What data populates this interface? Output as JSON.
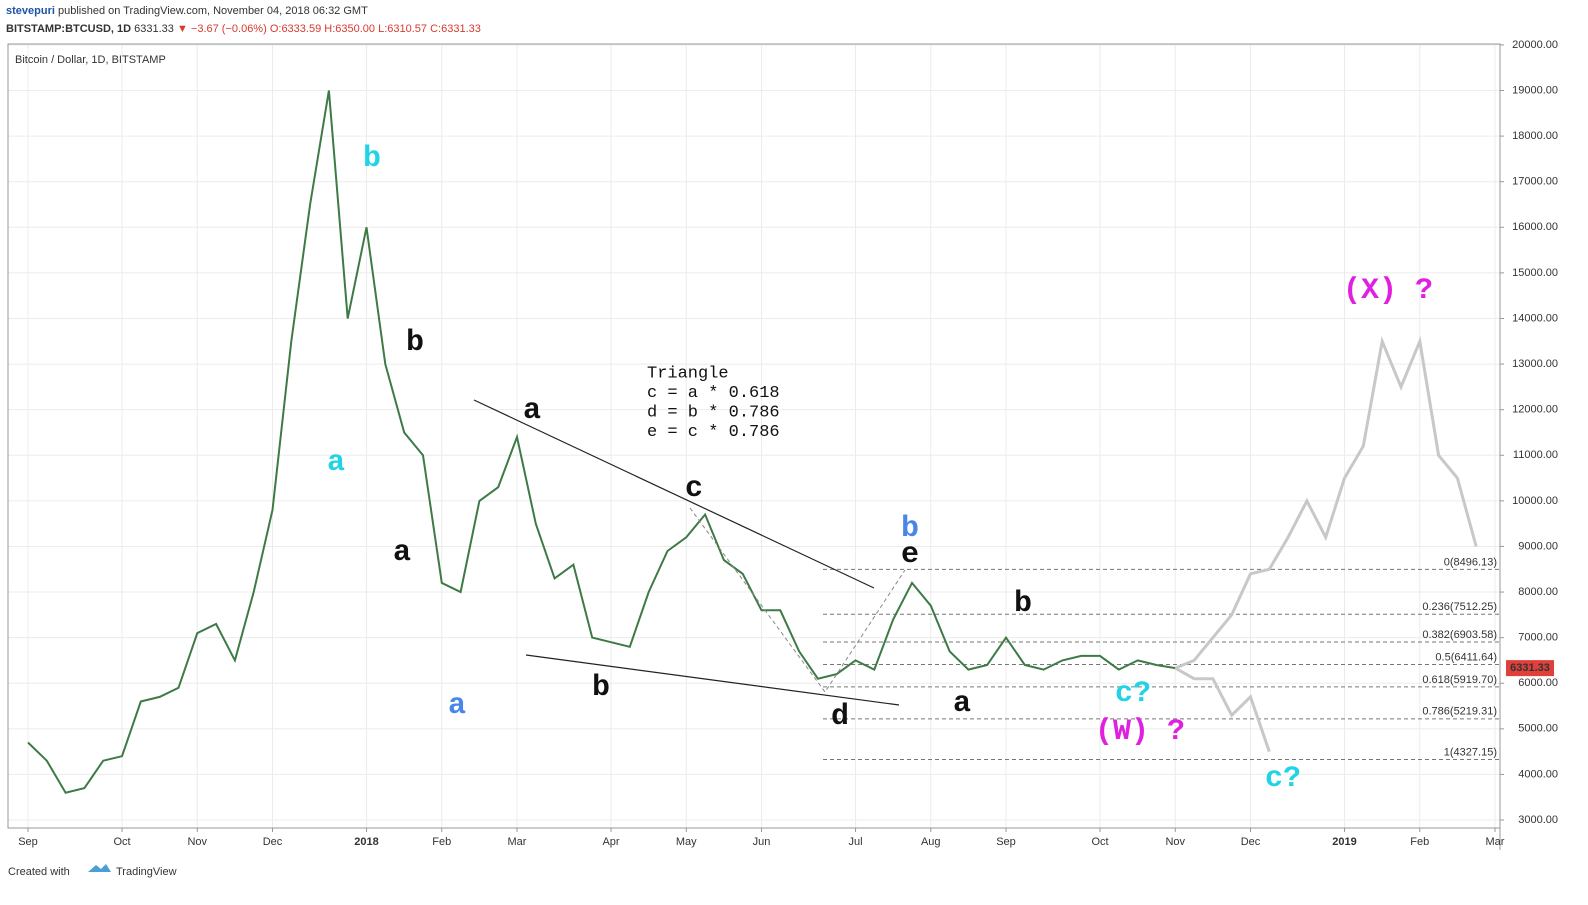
{
  "header": {
    "author": "stevepuri",
    "published": "published on TradingView.com, November 04, 2018 06:32 GMT",
    "symbol": "BITSTAMP:BTCUSD, 1D",
    "price": "6331.33",
    "arrow": "▼",
    "change": "−3.67 (−0.06%)",
    "ohlc": [
      "O:6333.59",
      "H:6350.00",
      "L:6310.57",
      "C:6331.33"
    ]
  },
  "footer": {
    "created": "Created with",
    "brand": "TradingView"
  },
  "chart_data": {
    "type": "line",
    "title": "Bitcoin / Dollar, 1D, BITSTAMP",
    "categories": [
      "Sep",
      null,
      null,
      null,
      null,
      "Oct",
      null,
      null,
      null,
      "Nov",
      null,
      null,
      null,
      "Dec",
      null,
      null,
      null,
      null,
      "2018",
      null,
      null,
      null,
      "Feb",
      null,
      null,
      null,
      "Mar",
      null,
      null,
      null,
      null,
      "Apr",
      null,
      null,
      null,
      "May",
      null,
      null,
      null,
      "Jun",
      null,
      null,
      null,
      null,
      "Jul",
      null,
      null,
      null,
      "Aug",
      null,
      null,
      null,
      "Sep",
      null,
      null,
      null,
      null,
      "Oct",
      null,
      null,
      null,
      "Nov",
      null,
      null,
      null,
      "Dec",
      null,
      null,
      null,
      null,
      "2019",
      null,
      null,
      null,
      "Feb",
      null,
      null,
      null,
      "Mar"
    ],
    "series": [
      {
        "name": "BTCUSD",
        "color": "#3d7a45",
        "values": [
          4700,
          4300,
          3600,
          3700,
          4300,
          4400,
          5600,
          5700,
          5900,
          7100,
          7300,
          6500,
          8000,
          9800,
          13500,
          16500,
          19000,
          14000,
          16000,
          13000,
          11500,
          11000,
          8200,
          8000,
          10000,
          10300,
          11400,
          9500,
          8300,
          8600,
          7000,
          6900,
          6800,
          8000,
          8900,
          9200,
          9700,
          8700,
          8400,
          7600,
          7600,
          6700,
          6100,
          6200,
          6500,
          6300,
          7400,
          8200,
          7700,
          6700,
          6300,
          6400,
          7000,
          6400,
          6300,
          6500,
          6600,
          6600,
          6300,
          6500,
          6400,
          6331.33,
          null,
          null,
          null,
          null,
          null,
          null,
          null,
          null,
          null,
          null,
          null,
          null,
          null,
          null,
          null,
          null,
          null
        ]
      },
      {
        "name": "Projection up",
        "color": "#c8c8c8",
        "values": [
          null,
          null,
          null,
          null,
          null,
          null,
          null,
          null,
          null,
          null,
          null,
          null,
          null,
          null,
          null,
          null,
          null,
          null,
          null,
          null,
          null,
          null,
          null,
          null,
          null,
          null,
          null,
          null,
          null,
          null,
          null,
          null,
          null,
          null,
          null,
          null,
          null,
          null,
          null,
          null,
          null,
          null,
          null,
          null,
          null,
          null,
          null,
          null,
          null,
          null,
          null,
          null,
          null,
          null,
          null,
          null,
          null,
          null,
          null,
          null,
          null,
          6331.33,
          6500,
          7000,
          7500,
          8400,
          8500,
          9200,
          10000,
          9200,
          10500,
          11200,
          13500,
          12500,
          13500,
          11000,
          10500,
          9000,
          null
        ]
      },
      {
        "name": "Projection down",
        "color": "#c8c8c8",
        "values": [
          null,
          null,
          null,
          null,
          null,
          null,
          null,
          null,
          null,
          null,
          null,
          null,
          null,
          null,
          null,
          null,
          null,
          null,
          null,
          null,
          null,
          null,
          null,
          null,
          null,
          null,
          null,
          null,
          null,
          null,
          null,
          null,
          null,
          null,
          null,
          null,
          null,
          null,
          null,
          null,
          null,
          null,
          null,
          null,
          null,
          null,
          null,
          null,
          null,
          null,
          null,
          null,
          null,
          null,
          null,
          null,
          null,
          null,
          null,
          null,
          null,
          6331.33,
          6100,
          6100,
          5300,
          5700,
          4500,
          null,
          null,
          null,
          null,
          null,
          null,
          null,
          null,
          null,
          null,
          null,
          null
        ]
      }
    ],
    "ylim": [
      2825,
      20020
    ],
    "yticks": [
      {
        "value": 3000,
        "label": "3000.00"
      },
      {
        "value": 4000,
        "label": "4000.00"
      },
      {
        "value": 5000,
        "label": "5000.00"
      },
      {
        "value": 6000,
        "label": "6000.00"
      },
      {
        "value": 7000,
        "label": "7000.00"
      },
      {
        "value": 8000,
        "label": "8000.00"
      },
      {
        "value": 9000,
        "label": "9000.00"
      },
      {
        "value": 10000,
        "label": "10000.00"
      },
      {
        "value": 11000,
        "label": "11000.00"
      },
      {
        "value": 12000,
        "label": "12000.00"
      },
      {
        "value": 13000,
        "label": "13000.00"
      },
      {
        "value": 14000,
        "label": "14000.00"
      },
      {
        "value": 15000,
        "label": "15000.00"
      },
      {
        "value": 16000,
        "label": "16000.00"
      },
      {
        "value": 17000,
        "label": "17000.00"
      },
      {
        "value": 18000,
        "label": "18000.00"
      },
      {
        "value": 19000,
        "label": "19000.00"
      },
      {
        "value": 20000,
        "label": "20000.00"
      }
    ],
    "grid": true,
    "last_price": 6331.33,
    "last_price_color": "#e0403a",
    "fib_levels": [
      {
        "value": 8496.13,
        "label": "0(8496.13)"
      },
      {
        "value": 7512.25,
        "label": "0.236(7512.25)"
      },
      {
        "value": 6903.58,
        "label": "0.382(6903.58)"
      },
      {
        "value": 6411.64,
        "label": "0.5(6411.64)"
      },
      {
        "value": 5919.7,
        "label": "0.618(5919.70)"
      },
      {
        "value": 5219.31,
        "label": "0.786(5219.31)"
      },
      {
        "value": 4327.15,
        "label": "1(4327.15)"
      }
    ],
    "note": [
      "Triangle",
      "c = a * 0.618",
      "d = b * 0.786",
      "e = c * 0.786"
    ],
    "annotations": [
      {
        "text": "a",
        "color": "#22d3e6"
      },
      {
        "text": "b",
        "color": "#22d3e6"
      },
      {
        "text": "b",
        "color": "#111111"
      },
      {
        "text": "a",
        "color": "#111111"
      },
      {
        "text": "a",
        "color": "#4a86e8"
      },
      {
        "text": "a",
        "color": "#111111"
      },
      {
        "text": "b",
        "color": "#111111"
      },
      {
        "text": "c",
        "color": "#111111"
      },
      {
        "text": "d",
        "color": "#111111"
      },
      {
        "text": "b",
        "color": "#4a86e8"
      },
      {
        "text": "e",
        "color": "#111111"
      },
      {
        "text": "b",
        "color": "#111111"
      },
      {
        "text": "a",
        "color": "#111111"
      },
      {
        "text": "c?",
        "color": "#22d3e6"
      },
      {
        "text": "(W) ?",
        "color": "#e020e0"
      },
      {
        "text": "c?",
        "color": "#22d3e6"
      },
      {
        "text": "(X) ?",
        "color": "#e020e0"
      }
    ]
  }
}
